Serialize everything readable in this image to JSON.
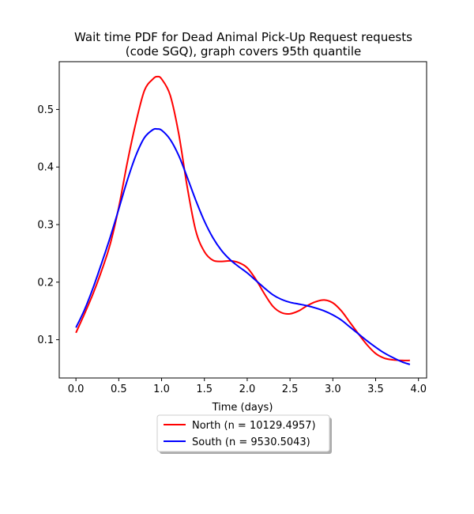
{
  "chart_data": {
    "type": "line",
    "title_lines": [
      "Wait time PDF for Dead Animal Pick-Up Request  requests",
      "(code SGQ), graph covers 95th quantile"
    ],
    "xlabel": "Time (days)",
    "ylabel": "",
    "xlim": [
      -0.195,
      4.095
    ],
    "ylim": [
      0.0335,
      0.583
    ],
    "xticks": [
      0.0,
      0.5,
      1.0,
      1.5,
      2.0,
      2.5,
      3.0,
      3.5,
      4.0
    ],
    "xtick_labels": [
      "0.0",
      "0.5",
      "1.0",
      "1.5",
      "2.0",
      "2.5",
      "3.0",
      "3.5",
      "4.0"
    ],
    "yticks": [
      0.1,
      0.2,
      0.3,
      0.4,
      0.5
    ],
    "ytick_labels": [
      "0.1",
      "0.2",
      "0.3",
      "0.4",
      "0.5"
    ],
    "grid": false,
    "legend_position": "below plot, centered",
    "series": [
      {
        "name": "North (n = 10129.4957)",
        "color": "#ff0000",
        "x": [
          0.0,
          0.1,
          0.2,
          0.3,
          0.4,
          0.5,
          0.6,
          0.7,
          0.8,
          0.9,
          0.95,
          1.0,
          1.1,
          1.2,
          1.3,
          1.4,
          1.5,
          1.6,
          1.7,
          1.8,
          1.9,
          2.0,
          2.1,
          2.2,
          2.3,
          2.4,
          2.5,
          2.6,
          2.7,
          2.8,
          2.9,
          3.0,
          3.1,
          3.2,
          3.3,
          3.4,
          3.5,
          3.6,
          3.7,
          3.8,
          3.9
        ],
        "y": [
          0.112,
          0.145,
          0.18,
          0.22,
          0.266,
          0.33,
          0.408,
          0.477,
          0.533,
          0.553,
          0.557,
          0.553,
          0.525,
          0.458,
          0.365,
          0.289,
          0.253,
          0.238,
          0.236,
          0.237,
          0.234,
          0.225,
          0.205,
          0.18,
          0.158,
          0.147,
          0.145,
          0.15,
          0.159,
          0.166,
          0.169,
          0.164,
          0.15,
          0.13,
          0.11,
          0.091,
          0.076,
          0.068,
          0.065,
          0.064,
          0.064
        ]
      },
      {
        "name": "South (n = 9530.5043)",
        "color": "#0000ff",
        "x": [
          0.0,
          0.1,
          0.2,
          0.3,
          0.4,
          0.5,
          0.6,
          0.7,
          0.8,
          0.9,
          0.95,
          1.0,
          1.1,
          1.2,
          1.3,
          1.4,
          1.5,
          1.6,
          1.7,
          1.8,
          1.9,
          2.0,
          2.1,
          2.2,
          2.3,
          2.4,
          2.5,
          2.6,
          2.7,
          2.8,
          2.9,
          3.0,
          3.1,
          3.2,
          3.3,
          3.4,
          3.5,
          3.6,
          3.7,
          3.8,
          3.9
        ],
        "y": [
          0.121,
          0.152,
          0.19,
          0.233,
          0.278,
          0.327,
          0.377,
          0.42,
          0.451,
          0.465,
          0.466,
          0.464,
          0.448,
          0.42,
          0.382,
          0.342,
          0.306,
          0.277,
          0.255,
          0.239,
          0.227,
          0.216,
          0.203,
          0.19,
          0.178,
          0.17,
          0.165,
          0.162,
          0.159,
          0.155,
          0.15,
          0.143,
          0.134,
          0.122,
          0.11,
          0.098,
          0.087,
          0.077,
          0.069,
          0.062,
          0.057
        ]
      }
    ]
  }
}
